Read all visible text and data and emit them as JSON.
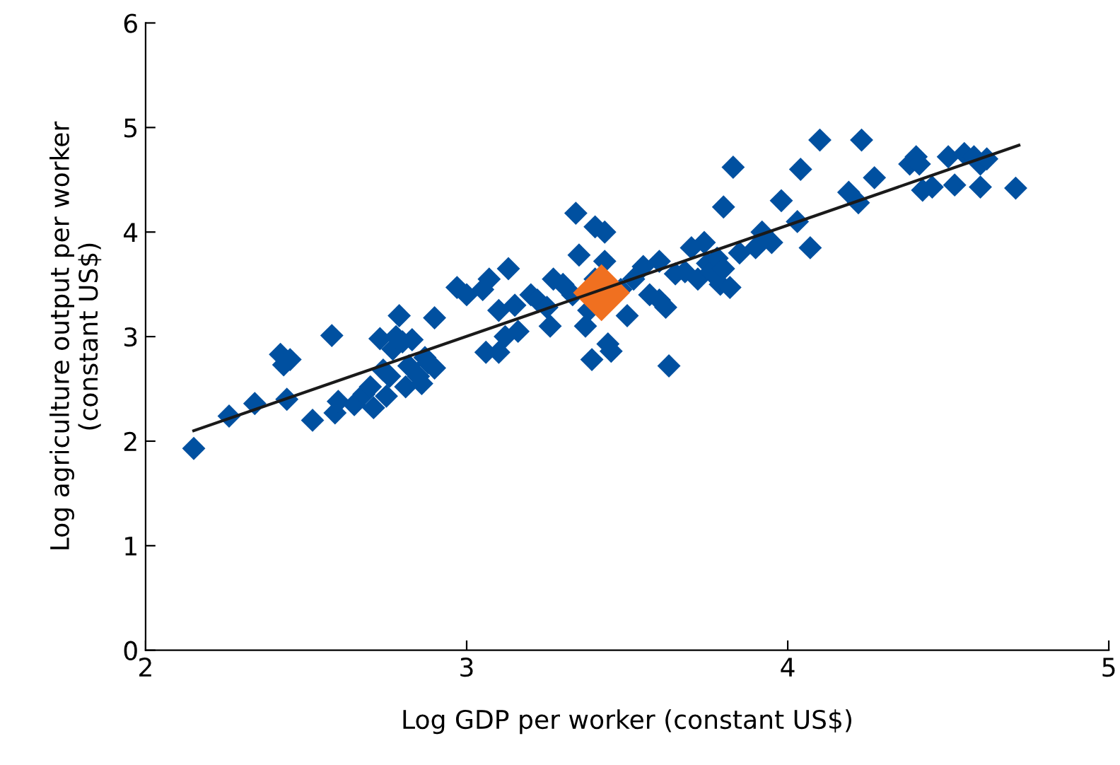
{
  "chart_data": {
    "type": "scatter",
    "xlabel": "Log GDP per worker (constant US$)",
    "ylabel": "Log agriculture output per worker\n(constant US$)",
    "xlim": [
      2,
      5
    ],
    "ylim": [
      0,
      6
    ],
    "xticks": [
      2,
      3,
      4,
      5
    ],
    "yticks": [
      0,
      1,
      2,
      3,
      4,
      5,
      6
    ],
    "grid": false,
    "legend": false,
    "marker": "diamond",
    "series": [
      {
        "color": "#0050a0",
        "x": [
          2.15,
          2.26,
          2.34,
          2.42,
          2.43,
          2.45,
          2.44,
          2.52,
          2.58,
          2.59,
          2.6,
          2.65,
          2.68,
          2.7,
          2.71,
          2.73,
          2.74,
          2.75,
          2.76,
          2.77,
          2.78,
          2.79,
          2.8,
          2.81,
          2.82,
          2.83,
          2.85,
          2.86,
          2.87,
          2.88,
          2.9,
          2.9,
          2.97,
          3.0,
          3.05,
          3.06,
          3.07,
          3.1,
          3.1,
          3.12,
          3.13,
          3.15,
          3.16,
          3.2,
          3.22,
          3.25,
          3.26,
          3.27,
          3.3,
          3.33,
          3.34,
          3.35,
          3.37,
          3.38,
          3.39,
          3.4,
          3.4,
          3.43,
          3.43,
          3.44,
          3.45,
          3.48,
          3.5,
          3.52,
          3.55,
          3.57,
          3.6,
          3.6,
          3.62,
          3.63,
          3.65,
          3.68,
          3.7,
          3.72,
          3.74,
          3.75,
          3.76,
          3.78,
          3.79,
          3.8,
          3.8,
          3.82,
          3.83,
          3.85,
          3.9,
          3.92,
          3.95,
          3.98,
          4.03,
          4.04,
          4.07,
          4.1,
          4.19,
          4.22,
          4.23,
          4.27,
          4.38,
          4.4,
          4.41,
          4.42,
          4.45,
          4.5,
          4.52,
          4.55,
          4.58,
          4.6,
          4.6,
          4.62,
          4.71
        ],
        "values": [
          1.93,
          2.24,
          2.36,
          2.83,
          2.73,
          2.78,
          2.4,
          2.2,
          3.01,
          2.27,
          2.38,
          2.35,
          2.45,
          2.52,
          2.32,
          2.98,
          2.68,
          2.43,
          2.62,
          2.88,
          3.0,
          3.2,
          2.95,
          2.52,
          2.72,
          2.97,
          2.62,
          2.55,
          2.8,
          2.75,
          2.7,
          3.18,
          3.47,
          3.4,
          3.45,
          2.85,
          3.55,
          2.85,
          3.25,
          3.0,
          3.65,
          3.3,
          3.05,
          3.4,
          3.35,
          3.28,
          3.1,
          3.55,
          3.5,
          3.4,
          4.18,
          3.78,
          3.1,
          3.25,
          2.78,
          3.55,
          4.05,
          4.0,
          3.72,
          2.93,
          2.86,
          3.45,
          3.2,
          3.55,
          3.67,
          3.4,
          3.72,
          3.35,
          3.28,
          2.72,
          3.6,
          3.62,
          3.85,
          3.55,
          3.9,
          3.7,
          3.62,
          3.75,
          3.5,
          3.65,
          4.24,
          3.47,
          4.62,
          3.8,
          3.85,
          4.0,
          3.9,
          4.3,
          4.1,
          4.6,
          3.85,
          4.88,
          4.38,
          4.28,
          4.88,
          4.52,
          4.65,
          4.72,
          4.65,
          4.4,
          4.43,
          4.72,
          4.45,
          4.75,
          4.72,
          4.43,
          4.65,
          4.7,
          4.42
        ]
      },
      {
        "color": "#f07020",
        "x": [
          3.42
        ],
        "values": [
          3.42
        ]
      },
      {
        "type": "line",
        "color": "#1a1a1a",
        "x": [
          2.15,
          4.72
        ],
        "values": [
          2.1,
          4.83
        ],
        "marker": "none"
      }
    ]
  }
}
